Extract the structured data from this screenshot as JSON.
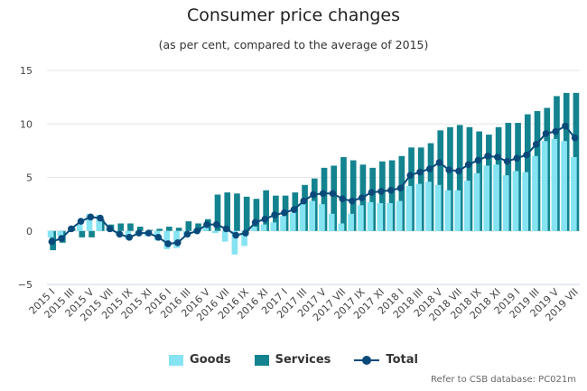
{
  "title": "Consumer price changes",
  "subtitle": "(as per cent, compared to the average of 2015)",
  "credit": "Refer to CSB database: PC021m",
  "colors": {
    "goods": "#85e3f2",
    "services": "#13838f",
    "total": "#0a4a7a",
    "grid": "#e6e6e6"
  },
  "chart_data": {
    "type": "bar",
    "categories": [
      "2015 I",
      "2015 II",
      "2015 III",
      "2015 IV",
      "2015 V",
      "2015 VI",
      "2015 VII",
      "2015 VIII",
      "2015 IX",
      "2015 X",
      "2015 XI",
      "2015 XII",
      "2016 I",
      "2016 II",
      "2016 III",
      "2016 IV",
      "2016 V",
      "2016 VI",
      "2016 VII",
      "2016 VIII",
      "2016 IX",
      "2016 X",
      "2016 XI",
      "2016 XII",
      "2017 I",
      "2017 II",
      "2017 III",
      "2017 IV",
      "2017 V",
      "2017 VI",
      "2017 VII",
      "2017 VIII",
      "2017 IX",
      "2017 X",
      "2017 XI",
      "2017 XII",
      "2018 I",
      "2018 II",
      "2018 III",
      "2018 IV",
      "2018 V",
      "2018 VI",
      "2018 VII",
      "2018 VIII",
      "2018 IX",
      "2018 X",
      "2018 XI",
      "2018 XII",
      "2019 I",
      "2019 II",
      "2019 III",
      "2019 IV",
      "2019 V",
      "2019 VI",
      "2019 VII"
    ],
    "tick_labels": [
      "2015 I",
      "2015 III",
      "2015 V",
      "2015 VII",
      "2015 IX",
      "2015 XI",
      "2016 I",
      "2016 III",
      "2016 V",
      "2016 VII",
      "2016 IX",
      "2016 XI",
      "2017 I",
      "2017 III",
      "2017 V",
      "2017 VII",
      "2017 IX",
      "2017 XI",
      "2018 I",
      "2018 III",
      "2018 V",
      "2018 VII",
      "2018 IX",
      "2018 XI",
      "2019 I",
      "2019 III",
      "2019 V",
      "2019 VII"
    ],
    "series": [
      {
        "name": "Goods",
        "type": "bar",
        "values": [
          -0.6,
          -0.5,
          -0.1,
          0.6,
          1.6,
          1.5,
          0.3,
          -0.4,
          -0.8,
          -0.4,
          -0.5,
          -0.9,
          -1.7,
          -1.6,
          -0.5,
          0.2,
          0.5,
          -0.2,
          -1.0,
          -2.2,
          -1.4,
          0.4,
          0.6,
          0.8,
          1.4,
          1.7,
          2.5,
          2.8,
          2.5,
          1.6,
          0.7,
          1.6,
          2.4,
          2.7,
          2.6,
          2.6,
          2.8,
          4.2,
          4.4,
          4.6,
          4.3,
          3.8,
          3.8,
          4.7,
          5.4,
          6.1,
          6.2,
          5.2,
          5.6,
          5.5,
          7.0,
          8.4,
          8.6,
          8.4,
          6.9
        ]
      },
      {
        "name": "Services",
        "type": "bar",
        "values": [
          -1.8,
          -1.1,
          0.3,
          -0.6,
          -0.6,
          1.1,
          0.6,
          0.7,
          0.7,
          0.4,
          0.1,
          0.2,
          0.4,
          0.3,
          0.9,
          0.7,
          1.1,
          3.4,
          3.6,
          3.5,
          3.2,
          3.0,
          3.8,
          3.3,
          3.3,
          3.6,
          4.3,
          4.9,
          5.9,
          6.1,
          6.9,
          6.6,
          6.2,
          5.9,
          6.5,
          6.6,
          7.0,
          7.8,
          7.8,
          8.2,
          9.4,
          9.7,
          9.9,
          9.7,
          9.3,
          9.0,
          9.7,
          10.1,
          10.1,
          10.9,
          11.2,
          11.5,
          12.6,
          12.9,
          12.9
        ]
      },
      {
        "name": "Total",
        "type": "line",
        "values": [
          -1.0,
          -0.7,
          0.2,
          0.9,
          1.3,
          1.2,
          0.2,
          -0.3,
          -0.6,
          -0.2,
          -0.2,
          -0.6,
          -1.2,
          -1.1,
          -0.3,
          0.0,
          0.6,
          0.6,
          0.2,
          -0.4,
          -0.2,
          0.8,
          1.1,
          1.5,
          1.7,
          2.0,
          2.8,
          3.4,
          3.5,
          3.5,
          3.0,
          2.8,
          3.1,
          3.6,
          3.7,
          3.8,
          4.0,
          5.2,
          5.5,
          5.8,
          6.4,
          5.7,
          5.6,
          6.2,
          6.6,
          7.0,
          6.9,
          6.5,
          6.8,
          7.1,
          8.1,
          9.1,
          9.3,
          9.8,
          8.7
        ]
      }
    ],
    "y_ticks": [
      "15",
      "10",
      "5",
      "0",
      "−5"
    ],
    "y_tick_values": [
      15,
      10,
      5,
      0,
      -5
    ],
    "ylim": [
      -5,
      15
    ],
    "grid": true,
    "legend_position": "bottom-center",
    "legend": [
      "Goods",
      "Services",
      "Total"
    ]
  }
}
